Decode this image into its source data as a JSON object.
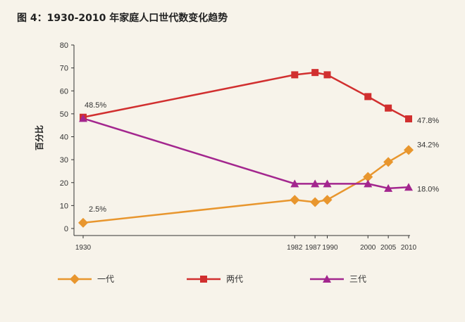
{
  "chart_data": {
    "type": "line",
    "title": "图 4：1930-2010 年家庭人口世代数变化趋势",
    "ylabel": "百分比",
    "xlabel": "",
    "x": [
      1930,
      1982,
      1987,
      1990,
      2000,
      2005,
      2010
    ],
    "xtick_labels": [
      "1930",
      "1982",
      "1987",
      "1990",
      "2000",
      "2005",
      "2010"
    ],
    "yticks": [
      0,
      10,
      20,
      30,
      40,
      50,
      60,
      70,
      80
    ],
    "ylim": [
      0,
      80
    ],
    "grid": false,
    "legend_position": "bottom",
    "series": [
      {
        "name": "一代",
        "color": "#e8962e",
        "marker": "diamond",
        "values": [
          2.5,
          12.5,
          11.5,
          12.5,
          22.5,
          29,
          34.2
        ]
      },
      {
        "name": "两代",
        "color": "#d12f2f",
        "marker": "square",
        "values": [
          48.5,
          67,
          68,
          67,
          57.5,
          52.5,
          47.8
        ]
      },
      {
        "name": "三代",
        "color": "#a3268e",
        "marker": "triangle",
        "values": [
          48,
          19.5,
          19.5,
          19.5,
          19.5,
          17.5,
          18.0
        ]
      }
    ],
    "annotations": [
      {
        "text": "48.5%",
        "series": 1,
        "point": 0
      },
      {
        "text": "2.5%",
        "series": 0,
        "point": 0
      },
      {
        "text": "47.8%",
        "series": 1,
        "point": 6
      },
      {
        "text": "34.2%",
        "series": 0,
        "point": 6
      },
      {
        "text": "18.0%",
        "series": 2,
        "point": 6
      }
    ]
  }
}
